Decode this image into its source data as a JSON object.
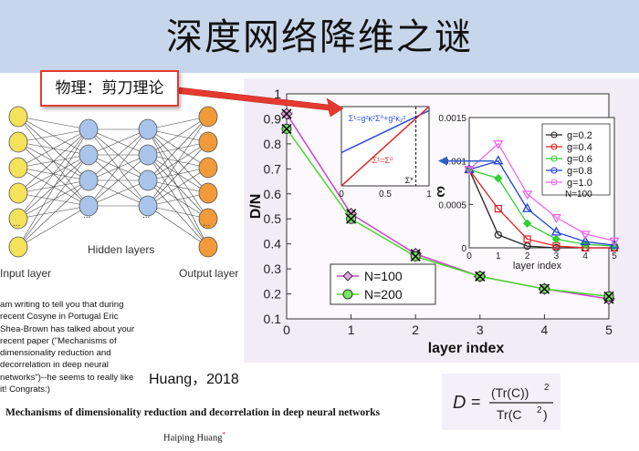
{
  "title": "深度网络降维之谜",
  "physics_label": "物理：剪刀理论",
  "network": {
    "input_label": "Input layer",
    "hidden_label": "Hidden layers",
    "output_label": "Output layer",
    "ellipsis": "...",
    "colors": {
      "input": "#f6e15a",
      "hidden": "#a9c4ea",
      "output": "#f09a3a"
    }
  },
  "email_lines": [
    "am writing to tell you that during",
    "recent Cosyne in Portugal Eric",
    "Shea-Brown has talked about your",
    "recent paper (\"Mechanisms of",
    "dimensionality reduction and",
    "decorrelation in deep neural",
    "networks\")--he seems to really like",
    "it! Congrats:)"
  ],
  "citation": "Huang，2018",
  "paper_title": "Mechanisms of dimensionality reduction and decorrelation in deep neural networks",
  "author": "Haiping Huang",
  "author_mark": "*",
  "formula": {
    "lhs": "D",
    "eq": "=",
    "numerator": "(Tr(C))",
    "num_power": "2",
    "denominator": "Tr(C",
    "den_power": "2",
    "den_close": ")"
  },
  "chart_data": [
    {
      "type": "line",
      "xlabel": "layer index",
      "ylabel": "D/N",
      "xlim": [
        0,
        5
      ],
      "ylim": [
        0.1,
        1.0
      ],
      "x_ticks": [
        "0",
        "1",
        "2",
        "3",
        "4",
        "5"
      ],
      "y_ticks": [
        "0.1",
        "0.2",
        "0.3",
        "0.4",
        "0.5",
        "0.6",
        "0.7",
        "0.8",
        "0.9",
        "1"
      ],
      "x": [
        0,
        1,
        2,
        3,
        4,
        5
      ],
      "series": [
        {
          "name": "N=100",
          "values": [
            0.92,
            0.52,
            0.36,
            0.27,
            0.22,
            0.18
          ],
          "color": "#cc44cc",
          "marker": "diamond"
        },
        {
          "name": "N=200",
          "values": [
            0.86,
            0.5,
            0.35,
            0.27,
            0.22,
            0.19
          ],
          "color": "#4cd62b",
          "marker": "circle"
        }
      ],
      "legend": "bottom-left"
    },
    {
      "type": "line",
      "ylabel": "ω",
      "xlabel": "layer index",
      "xlim": [
        0,
        5
      ],
      "ylim": [
        0,
        0.0015
      ],
      "x_ticks": [
        "0",
        "1",
        "2",
        "3",
        "4",
        "5"
      ],
      "y_ticks": [
        "0",
        "0.0005",
        "0.001",
        "0.0015"
      ],
      "x": [
        0,
        1,
        2,
        3,
        4,
        5
      ],
      "annotation": "N=100",
      "series": [
        {
          "name": "g=0.2",
          "values": [
            0.0009,
            0.00015,
            2e-05,
            0.0,
            0.0,
            0.0
          ],
          "color": "#222222",
          "marker": "circle"
        },
        {
          "name": "g=0.4",
          "values": [
            0.0009,
            0.00045,
            0.0001,
            2e-05,
            0.0,
            0.0
          ],
          "color": "#e02020",
          "marker": "square"
        },
        {
          "name": "g=0.6",
          "values": [
            0.0009,
            0.0008,
            0.00028,
            0.0001,
            4e-05,
            2e-05
          ],
          "color": "#30d030",
          "marker": "diamond"
        },
        {
          "name": "g=0.8",
          "values": [
            0.0009,
            0.001,
            0.00045,
            0.00018,
            7e-05,
            3e-05
          ],
          "color": "#2040d0",
          "marker": "triangle"
        },
        {
          "name": "g=1.0",
          "values": [
            0.0009,
            0.0012,
            0.00062,
            0.00035,
            0.00016,
            8e-05
          ],
          "color": "#ee66ee",
          "marker": "triangle-down"
        }
      ],
      "legend": "top-right"
    },
    {
      "type": "line",
      "xlim": [
        0,
        1
      ],
      "x_ticks": [
        "0",
        "0.5",
        "1"
      ],
      "series": [
        {
          "name": "Σ¹=g²κ²Σ⁰+g²κ₂²",
          "values": [
            0.42,
            0.95
          ],
          "color": "#3050e0"
        },
        {
          "name": "Σ¹=Σ⁰",
          "values": [
            0.0,
            1.0
          ],
          "color": "#e03030"
        }
      ],
      "annotation": "Σ*"
    }
  ]
}
